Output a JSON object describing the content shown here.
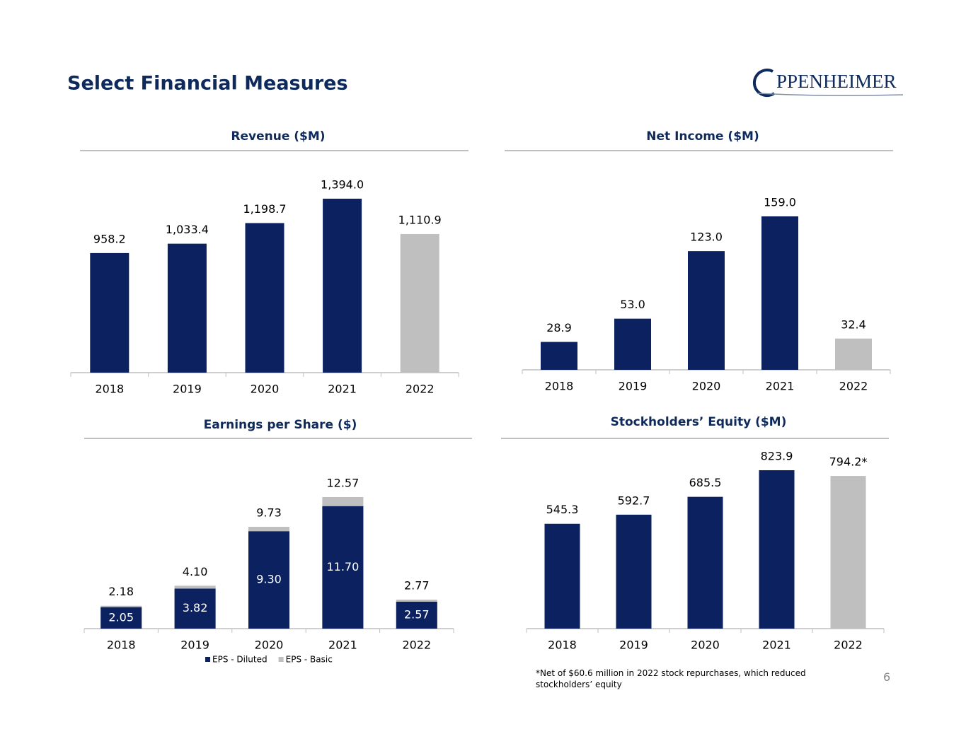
{
  "title": "Select Financial Measures",
  "logo": "PPENHEIMER",
  "footnote": "*Net of $60.6 million in 2022 stock repurchases, which reduced stockholders’ equity",
  "page_number": 6,
  "chart_data": [
    {
      "type": "bar",
      "title": "Revenue ($M)",
      "categories": [
        "2018",
        "2019",
        "2020",
        "2021",
        "2022"
      ],
      "values": [
        958.2,
        1033.4,
        1198.7,
        1394.0,
        1110.9
      ],
      "value_labels": [
        "958.2",
        "1,033.4",
        "1,198.7",
        "1,394.0",
        "1,110.9"
      ],
      "colors": [
        "#0b2160",
        "#0b2160",
        "#0b2160",
        "#0b2160",
        "#bfbfbf"
      ]
    },
    {
      "type": "bar",
      "title": "Net Income ($M)",
      "categories": [
        "2018",
        "2019",
        "2020",
        "2021",
        "2022"
      ],
      "values": [
        28.9,
        53.0,
        123.0,
        159.0,
        32.4
      ],
      "value_labels": [
        "28.9",
        "53.0",
        "123.0",
        "159.0",
        "32.4"
      ],
      "colors": [
        "#0b2160",
        "#0b2160",
        "#0b2160",
        "#0b2160",
        "#bfbfbf"
      ]
    },
    {
      "type": "bar",
      "title": "Earnings per Share ($)",
      "categories": [
        "2018",
        "2019",
        "2020",
        "2021",
        "2022"
      ],
      "series": [
        {
          "name": "EPS - Diluted",
          "color": "#0b2160",
          "values": [
            2.05,
            3.82,
            9.3,
            11.7,
            2.57
          ],
          "value_labels": [
            "2.05",
            "3.82",
            "9.30",
            "11.70",
            "2.57"
          ]
        },
        {
          "name": "EPS - Basic",
          "color": "#bfbfbf",
          "values": [
            2.18,
            4.1,
            9.73,
            12.57,
            2.77
          ],
          "value_labels": [
            "2.18",
            "4.10",
            "9.73",
            "12.57",
            "2.77"
          ]
        }
      ],
      "legend": "bottom"
    },
    {
      "type": "bar",
      "title": "Stockholders’ Equity ($M)",
      "categories": [
        "2018",
        "2019",
        "2020",
        "2021",
        "2022"
      ],
      "values": [
        545.3,
        592.7,
        685.5,
        823.9,
        794.2
      ],
      "value_labels": [
        "545.3",
        "592.7",
        "685.5",
        "823.9",
        "794.2*"
      ],
      "colors": [
        "#0b2160",
        "#0b2160",
        "#0b2160",
        "#0b2160",
        "#bfbfbf"
      ]
    }
  ]
}
